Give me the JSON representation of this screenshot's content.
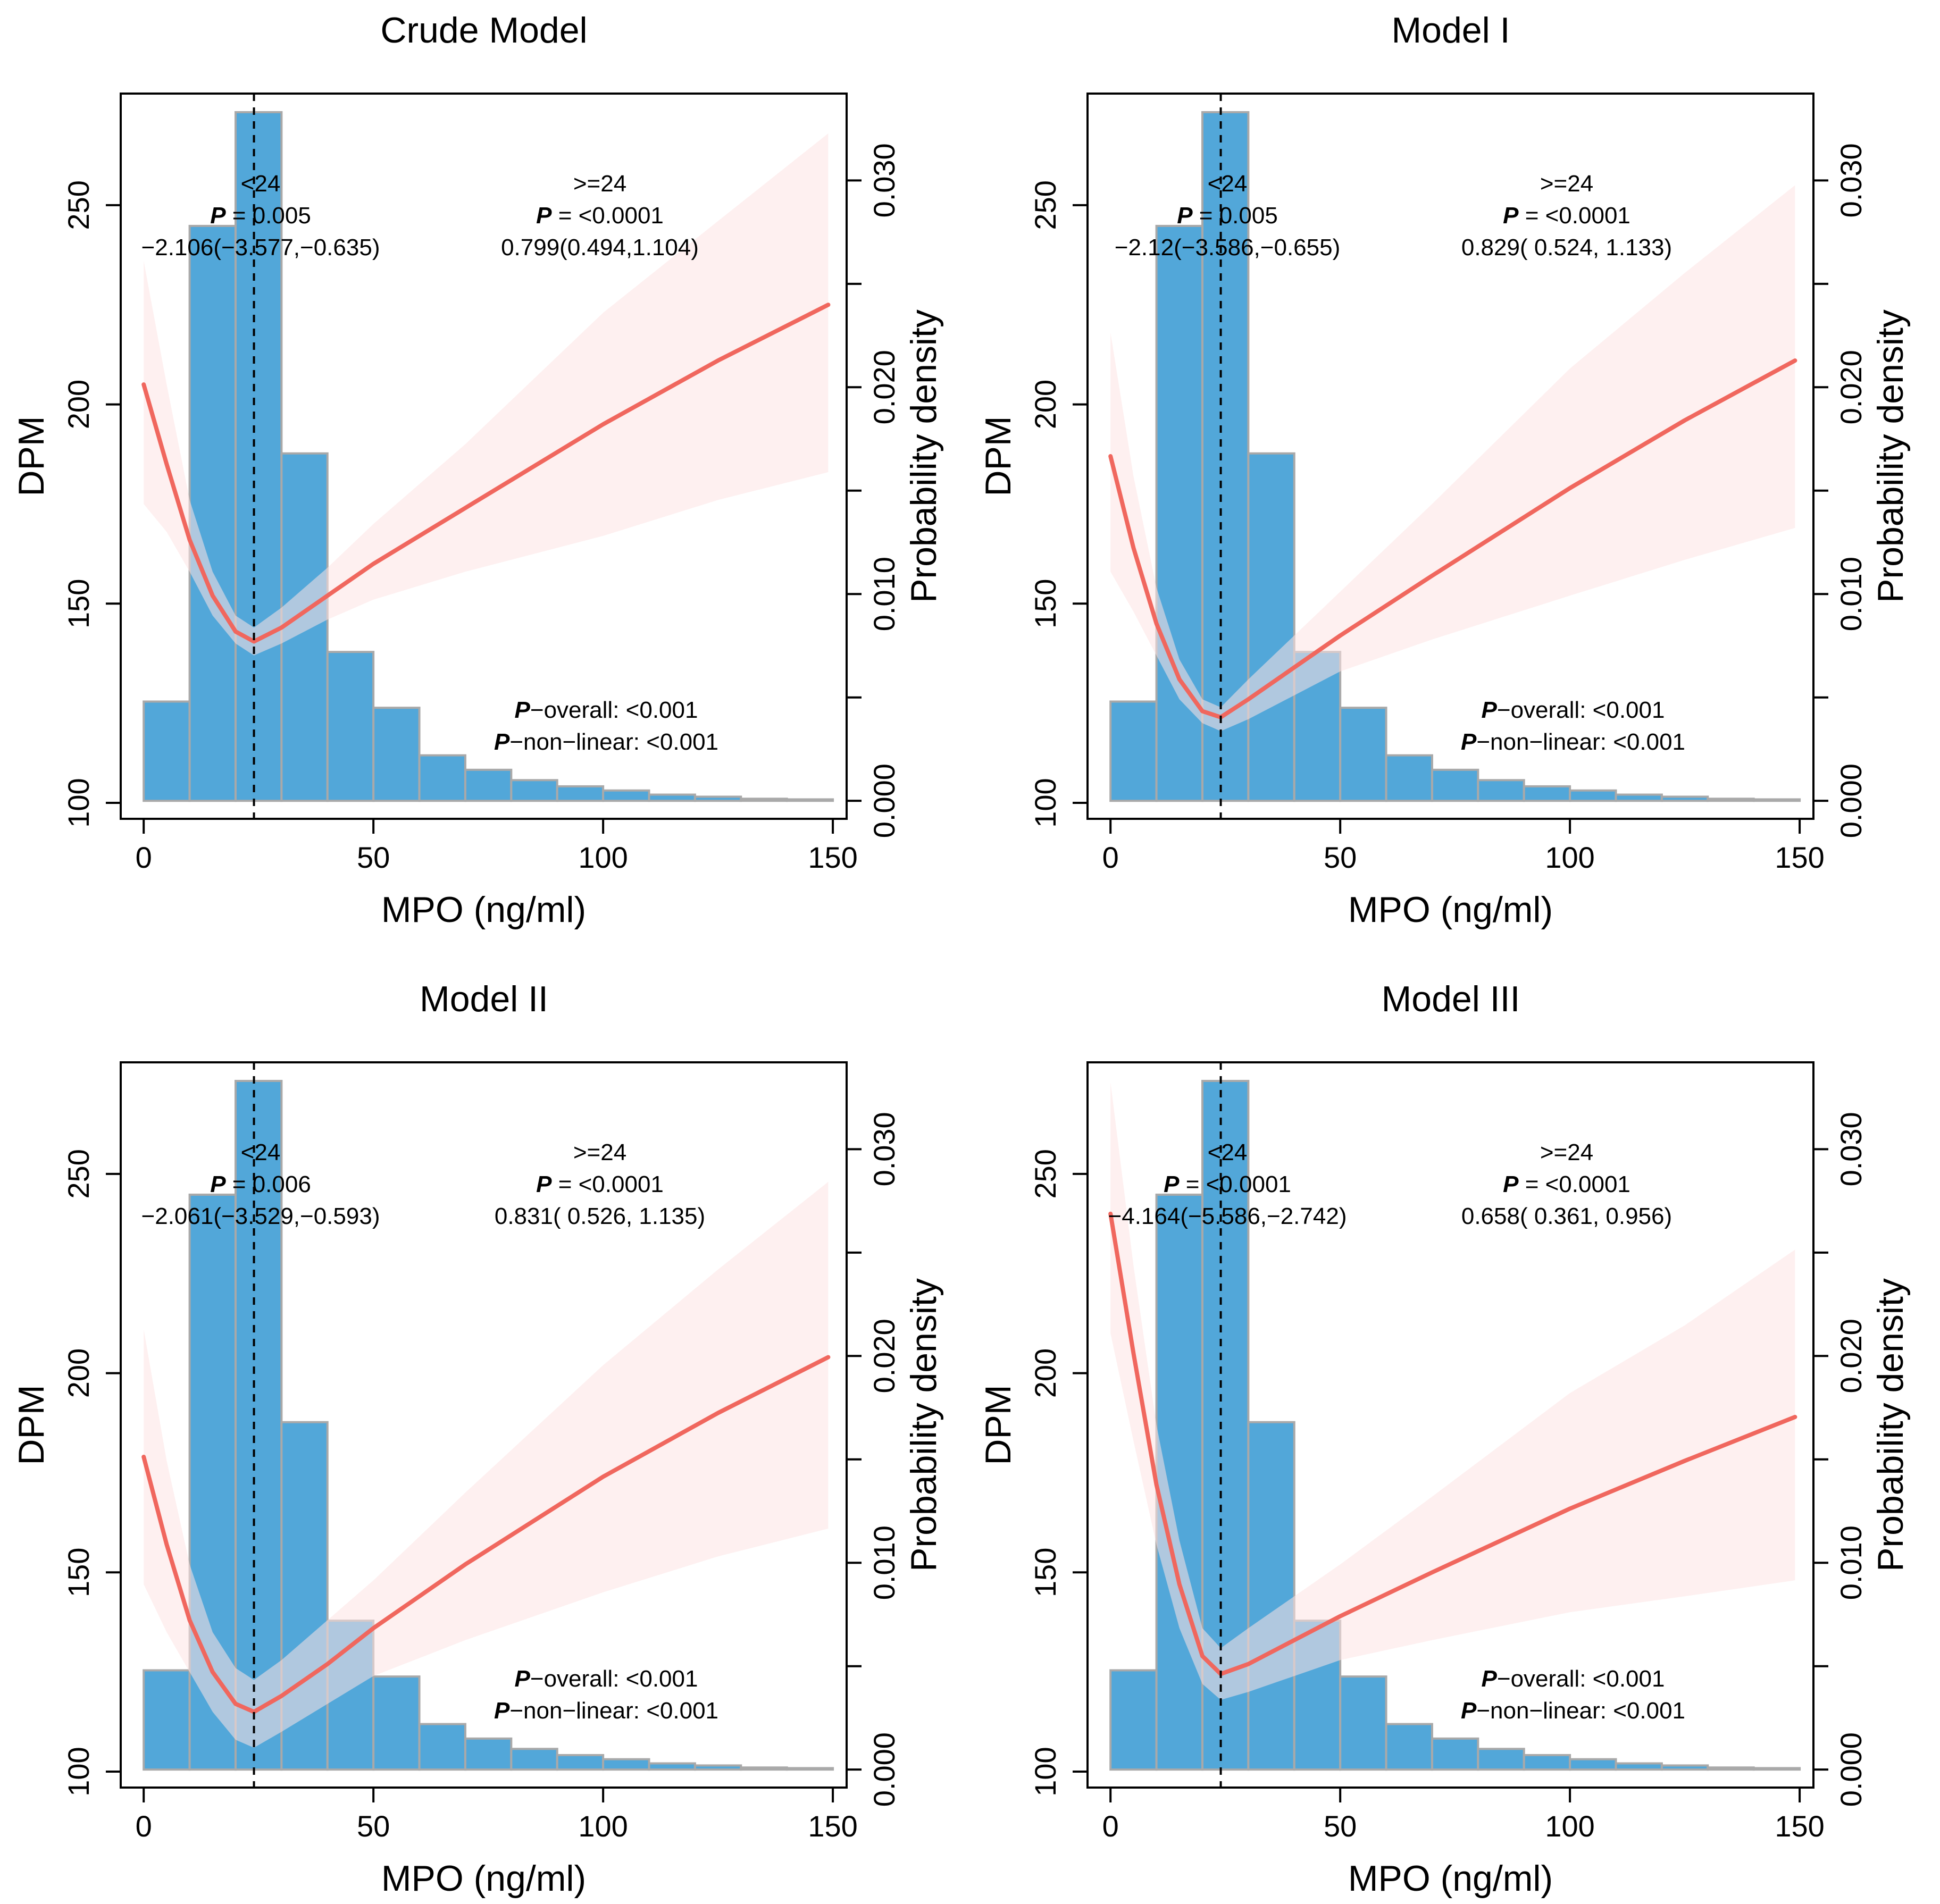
{
  "figure": {
    "panels_layout": "2x2 grid",
    "colors": {
      "bar_fill": "#52a7d9",
      "bar_edge": "#a9a9a9",
      "curve": "#f0675e",
      "band": "#fde3e3",
      "cutoff_line": "#000000"
    }
  },
  "chart_data": [
    {
      "type": "line",
      "title": "Crude Model",
      "xlabel": "MPO (ng/ml)",
      "ylabel": "DPM",
      "y2label": "Probability density",
      "xlim": [
        -5,
        153
      ],
      "ylim": [
        96,
        278
      ],
      "y2lim": [
        -0.00087,
        0.0342
      ],
      "xticks": [
        "0",
        "50",
        "100",
        "150"
      ],
      "yticks": [
        "100",
        "150",
        "200",
        "250"
      ],
      "y2ticks": [
        "0.000",
        "0.010",
        "0.020",
        "0.030"
      ],
      "cutoff": 24,
      "left_annotation": {
        "group": "<24",
        "p_label": "P",
        "p_text": " = 0.005",
        "estimate": "−2.106(−3.577,−0.635)"
      },
      "right_annotation": {
        "group": ">=24",
        "p_label": "P",
        "p_text": " = <0.0001",
        "estimate": "0.799(0.494,1.104)"
      },
      "bottom_annotation": {
        "line1_label": "P",
        "line1_text": "−overall: <0.001",
        "line2_label": "P",
        "line2_text": "−non−linear: <0.001"
      },
      "histogram": {
        "bin_edges": [
          0,
          10,
          20,
          30,
          40,
          50,
          60,
          70,
          80,
          90,
          100,
          110,
          120,
          130,
          140,
          150
        ],
        "densities": [
          0.0048,
          0.0278,
          0.0333,
          0.0168,
          0.0072,
          0.0045,
          0.0022,
          0.0015,
          0.001,
          0.0007,
          0.0005,
          0.0003,
          0.0002,
          0.0001,
          7e-05
        ]
      },
      "curve": {
        "x": [
          0,
          5,
          10,
          15,
          20,
          24,
          30,
          40,
          50,
          70,
          100,
          125,
          149
        ],
        "y": [
          205,
          185,
          166,
          152,
          143,
          140.5,
          144,
          152,
          160,
          174,
          195,
          211,
          225
        ],
        "lower": [
          175,
          168,
          158,
          147,
          140,
          137,
          140,
          146,
          151,
          158,
          167,
          176,
          183
        ],
        "upper": [
          236,
          205,
          176,
          158,
          147,
          144,
          149,
          159,
          170,
          190,
          223,
          246,
          268
        ]
      }
    },
    {
      "type": "line",
      "title": "Model I",
      "xlabel": "MPO (ng/ml)",
      "ylabel": "DPM",
      "y2label": "Probability density",
      "xlim": [
        -5,
        153
      ],
      "ylim": [
        96,
        278
      ],
      "y2lim": [
        -0.00087,
        0.0342
      ],
      "xticks": [
        "0",
        "50",
        "100",
        "150"
      ],
      "yticks": [
        "100",
        "150",
        "200",
        "250"
      ],
      "y2ticks": [
        "0.000",
        "0.010",
        "0.020",
        "0.030"
      ],
      "cutoff": 24,
      "left_annotation": {
        "group": "<24",
        "p_label": "P",
        "p_text": " = 0.005",
        "estimate": "−2.12(−3.586,−0.655)"
      },
      "right_annotation": {
        "group": ">=24",
        "p_label": "P",
        "p_text": " = <0.0001",
        "estimate": "0.829(  0.524,  1.133)"
      },
      "bottom_annotation": {
        "line1_label": "P",
        "line1_text": "−overall: <0.001",
        "line2_label": "P",
        "line2_text": "−non−linear: <0.001"
      },
      "histogram": {
        "bin_edges": [
          0,
          10,
          20,
          30,
          40,
          50,
          60,
          70,
          80,
          90,
          100,
          110,
          120,
          130,
          140,
          150
        ],
        "densities": [
          0.0048,
          0.0278,
          0.0333,
          0.0168,
          0.0072,
          0.0045,
          0.0022,
          0.0015,
          0.001,
          0.0007,
          0.0005,
          0.0003,
          0.0002,
          0.0001,
          7e-05
        ]
      },
      "curve": {
        "x": [
          0,
          5,
          10,
          15,
          20,
          24,
          30,
          40,
          50,
          70,
          100,
          125,
          149
        ],
        "y": [
          187,
          164,
          145,
          131,
          123,
          121.5,
          126,
          134,
          142,
          157,
          179,
          196,
          211
        ],
        "lower": [
          158,
          148,
          137,
          126,
          120,
          118,
          121,
          127,
          133,
          141,
          152,
          161,
          169
        ],
        "upper": [
          218,
          182,
          154,
          136,
          126,
          124,
          131,
          142,
          153,
          175,
          209,
          233,
          255
        ]
      }
    },
    {
      "type": "line",
      "title": "Model II",
      "xlabel": "MPO (ng/ml)",
      "ylabel": "DPM",
      "y2label": "Probability density",
      "xlim": [
        -5,
        153
      ],
      "ylim": [
        96,
        278
      ],
      "y2lim": [
        -0.00087,
        0.0342
      ],
      "xticks": [
        "0",
        "50",
        "100",
        "150"
      ],
      "yticks": [
        "100",
        "150",
        "200",
        "250"
      ],
      "y2ticks": [
        "0.000",
        "0.010",
        "0.020",
        "0.030"
      ],
      "cutoff": 24,
      "left_annotation": {
        "group": "<24",
        "p_label": "P",
        "p_text": " = 0.006",
        "estimate": "−2.061(−3.529,−0.593)"
      },
      "right_annotation": {
        "group": ">=24",
        "p_label": "P",
        "p_text": " = <0.0001",
        "estimate": "0.831(   0.526,  1.135)"
      },
      "bottom_annotation": {
        "line1_label": "P",
        "line1_text": "−overall: <0.001",
        "line2_label": "P",
        "line2_text": "−non−linear: <0.001"
      },
      "histogram": {
        "bin_edges": [
          0,
          10,
          20,
          30,
          40,
          50,
          60,
          70,
          80,
          90,
          100,
          110,
          120,
          130,
          140,
          150
        ],
        "densities": [
          0.0048,
          0.0278,
          0.0333,
          0.0168,
          0.0072,
          0.0045,
          0.0022,
          0.0015,
          0.001,
          0.0007,
          0.0005,
          0.0003,
          0.0002,
          0.0001,
          7e-05
        ]
      },
      "curve": {
        "x": [
          0,
          5,
          10,
          15,
          20,
          24,
          30,
          40,
          50,
          70,
          100,
          125,
          149
        ],
        "y": [
          179,
          157,
          138,
          125,
          117,
          115,
          119,
          127,
          136,
          152,
          174,
          190,
          204
        ],
        "lower": [
          147,
          135,
          125,
          115,
          108,
          106,
          110,
          117,
          124,
          133,
          145,
          154,
          161
        ],
        "upper": [
          211,
          178,
          152,
          135,
          126,
          123,
          128,
          138,
          148,
          170,
          202,
          226,
          248
        ]
      }
    },
    {
      "type": "line",
      "title": "Model III",
      "xlabel": "MPO (ng/ml)",
      "ylabel": "DPM",
      "y2label": "Probability density",
      "xlim": [
        -5,
        153
      ],
      "ylim": [
        96,
        278
      ],
      "y2lim": [
        -0.00087,
        0.0342
      ],
      "xticks": [
        "0",
        "50",
        "100",
        "150"
      ],
      "yticks": [
        "100",
        "150",
        "200",
        "250"
      ],
      "y2ticks": [
        "0.000",
        "0.010",
        "0.020",
        "0.030"
      ],
      "cutoff": 24,
      "left_annotation": {
        "group": "<24",
        "p_label": "P",
        "p_text": " = <0.0001",
        "estimate": "−4.164(−5.586,−2.742)"
      },
      "right_annotation": {
        "group": ">=24",
        "p_label": "P",
        "p_text": " = <0.0001",
        "estimate": "0.658(   0.361,  0.956)"
      },
      "bottom_annotation": {
        "line1_label": "P",
        "line1_text": "−overall: <0.001",
        "line2_label": "P",
        "line2_text": "−non−linear: <0.001"
      },
      "histogram": {
        "bin_edges": [
          0,
          10,
          20,
          30,
          40,
          50,
          60,
          70,
          80,
          90,
          100,
          110,
          120,
          130,
          140,
          150
        ],
        "densities": [
          0.0048,
          0.0278,
          0.0333,
          0.0168,
          0.0072,
          0.0045,
          0.0022,
          0.0015,
          0.001,
          0.0007,
          0.0005,
          0.0003,
          0.0002,
          0.0001,
          7e-05
        ]
      },
      "curve": {
        "x": [
          0,
          5,
          10,
          15,
          20,
          24,
          30,
          40,
          50,
          70,
          100,
          125,
          149
        ],
        "y": [
          240,
          205,
          172,
          147,
          129,
          124.5,
          127,
          133,
          139,
          150,
          166,
          178,
          189
        ],
        "lower": [
          210,
          183,
          157,
          136,
          122,
          118,
          120,
          124,
          128,
          133,
          140,
          144,
          148
        ],
        "upper": [
          273,
          227,
          187,
          158,
          136,
          131,
          136,
          144,
          152,
          169,
          195,
          212,
          231
        ]
      }
    }
  ]
}
